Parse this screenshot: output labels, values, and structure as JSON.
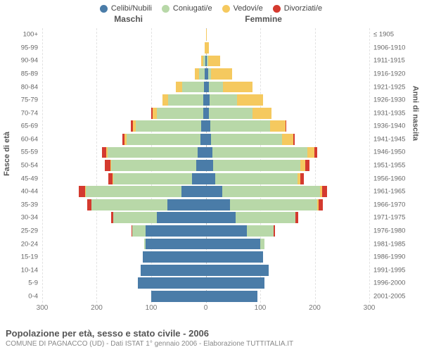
{
  "chart": {
    "type": "population-pyramid",
    "legend": [
      {
        "label": "Celibi/Nubili",
        "color": "#4a7ca8"
      },
      {
        "label": "Coniugati/e",
        "color": "#b8d8a8"
      },
      {
        "label": "Vedovi/e",
        "color": "#f5c95f"
      },
      {
        "label": "Divorziati/e",
        "color": "#d43a2f"
      }
    ],
    "header_male": "Maschi",
    "header_female": "Femmine",
    "y_label_left": "Fasce di età",
    "y_label_right": "Anni di nascita",
    "x_ticks": [
      -300,
      -200,
      -100,
      0,
      100,
      200,
      300
    ],
    "x_max": 300,
    "rows": [
      {
        "age": "100+",
        "birth": "≤ 1905",
        "m": {
          "c": 0,
          "co": 0,
          "v": 0,
          "d": 0
        },
        "f": {
          "c": 0,
          "co": 0,
          "v": 1,
          "d": 0
        }
      },
      {
        "age": "95-99",
        "birth": "1906-1910",
        "m": {
          "c": 0,
          "co": 0,
          "v": 2,
          "d": 0
        },
        "f": {
          "c": 0,
          "co": 0,
          "v": 6,
          "d": 0
        }
      },
      {
        "age": "90-94",
        "birth": "1911-1915",
        "m": {
          "c": 1,
          "co": 3,
          "v": 4,
          "d": 0
        },
        "f": {
          "c": 2,
          "co": 2,
          "v": 22,
          "d": 0
        }
      },
      {
        "age": "85-89",
        "birth": "1916-1920",
        "m": {
          "c": 2,
          "co": 10,
          "v": 8,
          "d": 0
        },
        "f": {
          "c": 4,
          "co": 6,
          "v": 38,
          "d": 0
        }
      },
      {
        "age": "80-84",
        "birth": "1921-1925",
        "m": {
          "c": 3,
          "co": 40,
          "v": 12,
          "d": 0
        },
        "f": {
          "c": 6,
          "co": 25,
          "v": 55,
          "d": 0
        }
      },
      {
        "age": "75-79",
        "birth": "1926-1930",
        "m": {
          "c": 4,
          "co": 65,
          "v": 10,
          "d": 0
        },
        "f": {
          "c": 7,
          "co": 50,
          "v": 48,
          "d": 0
        }
      },
      {
        "age": "70-74",
        "birth": "1931-1935",
        "m": {
          "c": 5,
          "co": 85,
          "v": 8,
          "d": 2
        },
        "f": {
          "c": 6,
          "co": 80,
          "v": 35,
          "d": 0
        }
      },
      {
        "age": "65-69",
        "birth": "1936-1940",
        "m": {
          "c": 8,
          "co": 120,
          "v": 6,
          "d": 3
        },
        "f": {
          "c": 8,
          "co": 110,
          "v": 28,
          "d": 2
        }
      },
      {
        "age": "60-64",
        "birth": "1941-1945",
        "m": {
          "c": 10,
          "co": 135,
          "v": 4,
          "d": 4
        },
        "f": {
          "c": 10,
          "co": 130,
          "v": 20,
          "d": 3
        }
      },
      {
        "age": "55-59",
        "birth": "1946-1950",
        "m": {
          "c": 15,
          "co": 165,
          "v": 3,
          "d": 8
        },
        "f": {
          "c": 12,
          "co": 175,
          "v": 12,
          "d": 6
        }
      },
      {
        "age": "50-54",
        "birth": "1951-1955",
        "m": {
          "c": 18,
          "co": 155,
          "v": 2,
          "d": 10
        },
        "f": {
          "c": 14,
          "co": 160,
          "v": 8,
          "d": 8
        }
      },
      {
        "age": "45-49",
        "birth": "1956-1960",
        "m": {
          "c": 25,
          "co": 145,
          "v": 1,
          "d": 8
        },
        "f": {
          "c": 18,
          "co": 150,
          "v": 5,
          "d": 7
        }
      },
      {
        "age": "40-44",
        "birth": "1961-1965",
        "m": {
          "c": 45,
          "co": 175,
          "v": 1,
          "d": 12
        },
        "f": {
          "c": 30,
          "co": 180,
          "v": 3,
          "d": 10
        }
      },
      {
        "age": "35-39",
        "birth": "1966-1970",
        "m": {
          "c": 70,
          "co": 140,
          "v": 0,
          "d": 8
        },
        "f": {
          "c": 45,
          "co": 160,
          "v": 2,
          "d": 8
        }
      },
      {
        "age": "30-34",
        "birth": "1971-1975",
        "m": {
          "c": 90,
          "co": 80,
          "v": 0,
          "d": 4
        },
        "f": {
          "c": 55,
          "co": 110,
          "v": 0,
          "d": 5
        }
      },
      {
        "age": "25-29",
        "birth": "1976-1980",
        "m": {
          "c": 110,
          "co": 25,
          "v": 0,
          "d": 1
        },
        "f": {
          "c": 75,
          "co": 50,
          "v": 0,
          "d": 2
        }
      },
      {
        "age": "20-24",
        "birth": "1981-1985",
        "m": {
          "c": 110,
          "co": 3,
          "v": 0,
          "d": 0
        },
        "f": {
          "c": 100,
          "co": 8,
          "v": 0,
          "d": 0
        }
      },
      {
        "age": "15-19",
        "birth": "1986-1990",
        "m": {
          "c": 115,
          "co": 0,
          "v": 0,
          "d": 0
        },
        "f": {
          "c": 105,
          "co": 0,
          "v": 0,
          "d": 0
        }
      },
      {
        "age": "10-14",
        "birth": "1991-1995",
        "m": {
          "c": 120,
          "co": 0,
          "v": 0,
          "d": 0
        },
        "f": {
          "c": 115,
          "co": 0,
          "v": 0,
          "d": 0
        }
      },
      {
        "age": "5-9",
        "birth": "1996-2000",
        "m": {
          "c": 125,
          "co": 0,
          "v": 0,
          "d": 0
        },
        "f": {
          "c": 108,
          "co": 0,
          "v": 0,
          "d": 0
        }
      },
      {
        "age": "0-4",
        "birth": "2001-2005",
        "m": {
          "c": 100,
          "co": 0,
          "v": 0,
          "d": 0
        },
        "f": {
          "c": 95,
          "co": 0,
          "v": 0,
          "d": 0
        }
      }
    ],
    "footer_title": "Popolazione per età, sesso e stato civile - 2006",
    "footer_sub": "COMUNE DI PAGNACCO (UD) - Dati ISTAT 1° gennaio 2006 - Elaborazione TUTTITALIA.IT",
    "background_color": "#ffffff",
    "grid_color": "#e2e2e2",
    "axis_color": "#bbbbbb"
  }
}
